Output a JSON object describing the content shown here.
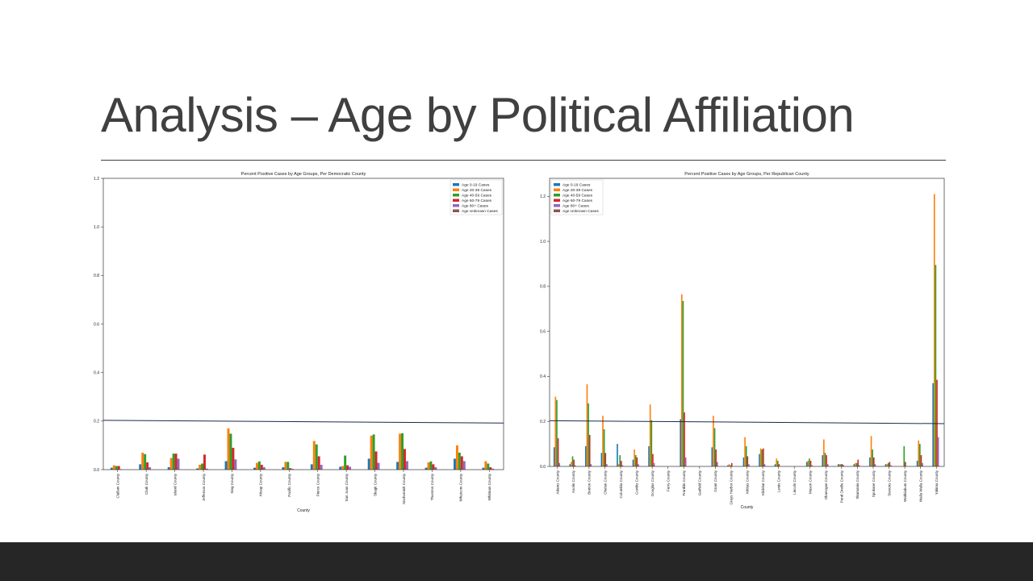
{
  "slide": {
    "title": "Analysis – Age by Political Affiliation"
  },
  "chart_data": [
    {
      "type": "bar",
      "title": "Percent Positive Cases by Age Groups, Per Democratic County",
      "xlabel": "County",
      "ylabel": "",
      "ylim": [
        0,
        1.2
      ],
      "yticks": [
        0.0,
        0.2,
        0.4,
        0.6,
        0.8,
        1.0,
        1.2
      ],
      "legend_position": "top-right",
      "reference_line": [
        0.203,
        0.192
      ],
      "categories": [
        "Clallam County",
        "Clark County",
        "Island County",
        "Jefferson County",
        "King County",
        "Kitsap County",
        "Pacific County",
        "Pierce County",
        "San Juan County",
        "Skagit County",
        "Snohomish County",
        "Thurston County",
        "Whatcom County",
        "Whitman County"
      ],
      "series": [
        {
          "name": "Age 0-19 Cases",
          "color": "#1f77b4",
          "values": [
            0.008,
            0.022,
            0.01,
            0.005,
            0.035,
            0.008,
            0.01,
            0.022,
            0.012,
            0.045,
            0.032,
            0.008,
            0.045,
            0.008
          ]
        },
        {
          "name": "Age 20-39 Cases",
          "color": "#ff7f0e",
          "values": [
            0.018,
            0.07,
            0.048,
            0.02,
            0.17,
            0.028,
            0.032,
            0.118,
            0.015,
            0.14,
            0.148,
            0.03,
            0.1,
            0.035
          ]
        },
        {
          "name": "Age 40-59 Cases",
          "color": "#2ca02c",
          "values": [
            0.015,
            0.064,
            0.066,
            0.025,
            0.148,
            0.034,
            0.032,
            0.104,
            0.058,
            0.145,
            0.15,
            0.034,
            0.07,
            0.025
          ]
        },
        {
          "name": "Age 60-79 Cases",
          "color": "#d62728",
          "values": [
            0.015,
            0.03,
            0.066,
            0.062,
            0.09,
            0.02,
            0.006,
            0.055,
            0.018,
            0.075,
            0.085,
            0.022,
            0.055,
            0.01
          ]
        },
        {
          "name": "Age 80+ Cases",
          "color": "#9467bd",
          "values": [
            0.002,
            0.01,
            0.045,
            0.004,
            0.042,
            0.01,
            0.003,
            0.02,
            0.012,
            0.028,
            0.035,
            0.01,
            0.035,
            0.004
          ]
        },
        {
          "name": "Age Unknown Cases",
          "color": "#8c564b",
          "values": [
            0.0,
            0.0,
            0.0,
            0.0,
            0.0,
            0.0,
            0.0,
            0.0,
            0.0,
            0.0,
            0.0,
            0.0,
            0.0,
            0.0
          ]
        }
      ]
    },
    {
      "type": "bar",
      "title": "Percent Positive Cases by Age Groups, Per Republican County",
      "xlabel": "County",
      "ylabel": "",
      "ylim": [
        0,
        1.28
      ],
      "yticks": [
        0.0,
        0.2,
        0.4,
        0.6,
        0.8,
        1.0,
        1.2
      ],
      "legend_position": "top-left",
      "reference_line": [
        0.203,
        0.19
      ],
      "categories": [
        "Adams County",
        "Asotin County",
        "Benton County",
        "Chelan County",
        "Columbia County",
        "Cowlitz County",
        "Douglas County",
        "Ferry County",
        "Franklin County",
        "Garfield County",
        "Grant County",
        "Grays Harbor County",
        "Kittitas County",
        "Klickitat County",
        "Lewis County",
        "Lincoln County",
        "Mason County",
        "Okanogan County",
        "Pend Oreille County",
        "Skamania County",
        "Spokane County",
        "Stevens County",
        "Wahkiakum County",
        "Walla Walla County",
        "Yakima County"
      ],
      "series": [
        {
          "name": "Age 0-19 Cases",
          "color": "#1f77b4",
          "values": [
            0.085,
            0.01,
            0.09,
            0.06,
            0.1,
            0.03,
            0.09,
            0.0,
            0.21,
            0.0,
            0.085,
            0.005,
            0.04,
            0.055,
            0.01,
            0.0,
            0.02,
            0.05,
            0.01,
            0.01,
            0.04,
            0.01,
            0.0,
            0.025,
            0.37
          ]
        },
        {
          "name": "Age 20-39 Cases",
          "color": "#ff7f0e",
          "values": [
            0.31,
            0.02,
            0.365,
            0.225,
            0.01,
            0.075,
            0.275,
            0.0,
            0.765,
            0.0,
            0.225,
            0.01,
            0.13,
            0.08,
            0.035,
            0.0,
            0.025,
            0.12,
            0.01,
            0.015,
            0.135,
            0.01,
            0.0,
            0.115,
            1.21
          ]
        },
        {
          "name": "Age 40-59 Cases",
          "color": "#2ca02c",
          "values": [
            0.295,
            0.045,
            0.28,
            0.165,
            0.05,
            0.05,
            0.205,
            0.0,
            0.735,
            0.0,
            0.17,
            0.005,
            0.09,
            0.075,
            0.025,
            0.0,
            0.035,
            0.06,
            0.01,
            0.015,
            0.075,
            0.015,
            0.09,
            0.1,
            0.895
          ]
        },
        {
          "name": "Age 60-79 Cases",
          "color": "#d62728",
          "values": [
            0.125,
            0.03,
            0.14,
            0.06,
            0.025,
            0.04,
            0.055,
            0.0,
            0.24,
            0.0,
            0.075,
            0.015,
            0.045,
            0.08,
            0.01,
            0.0,
            0.025,
            0.05,
            0.01,
            0.03,
            0.04,
            0.02,
            0.02,
            0.05,
            0.385
          ]
        },
        {
          "name": "Age 80+ Cases",
          "color": "#9467bd",
          "values": [
            0.015,
            0.005,
            0.01,
            0.01,
            0.005,
            0.01,
            0.015,
            0.0,
            0.04,
            0.0,
            0.02,
            0.0,
            0.01,
            0.01,
            0.0,
            0.0,
            0.005,
            0.01,
            0.005,
            0.005,
            0.01,
            0.005,
            0.0,
            0.015,
            0.13
          ]
        },
        {
          "name": "Age Unknown Cases",
          "color": "#8c564b",
          "values": [
            0.0,
            0.0,
            0.0,
            0.0,
            0.0,
            0.0,
            0.0,
            0.0,
            0.0,
            0.0,
            0.0,
            0.0,
            0.0,
            0.0,
            0.0,
            0.0,
            0.0,
            0.0,
            0.0,
            0.0,
            0.0,
            0.0,
            0.0,
            0.0,
            0.0
          ]
        }
      ]
    }
  ]
}
